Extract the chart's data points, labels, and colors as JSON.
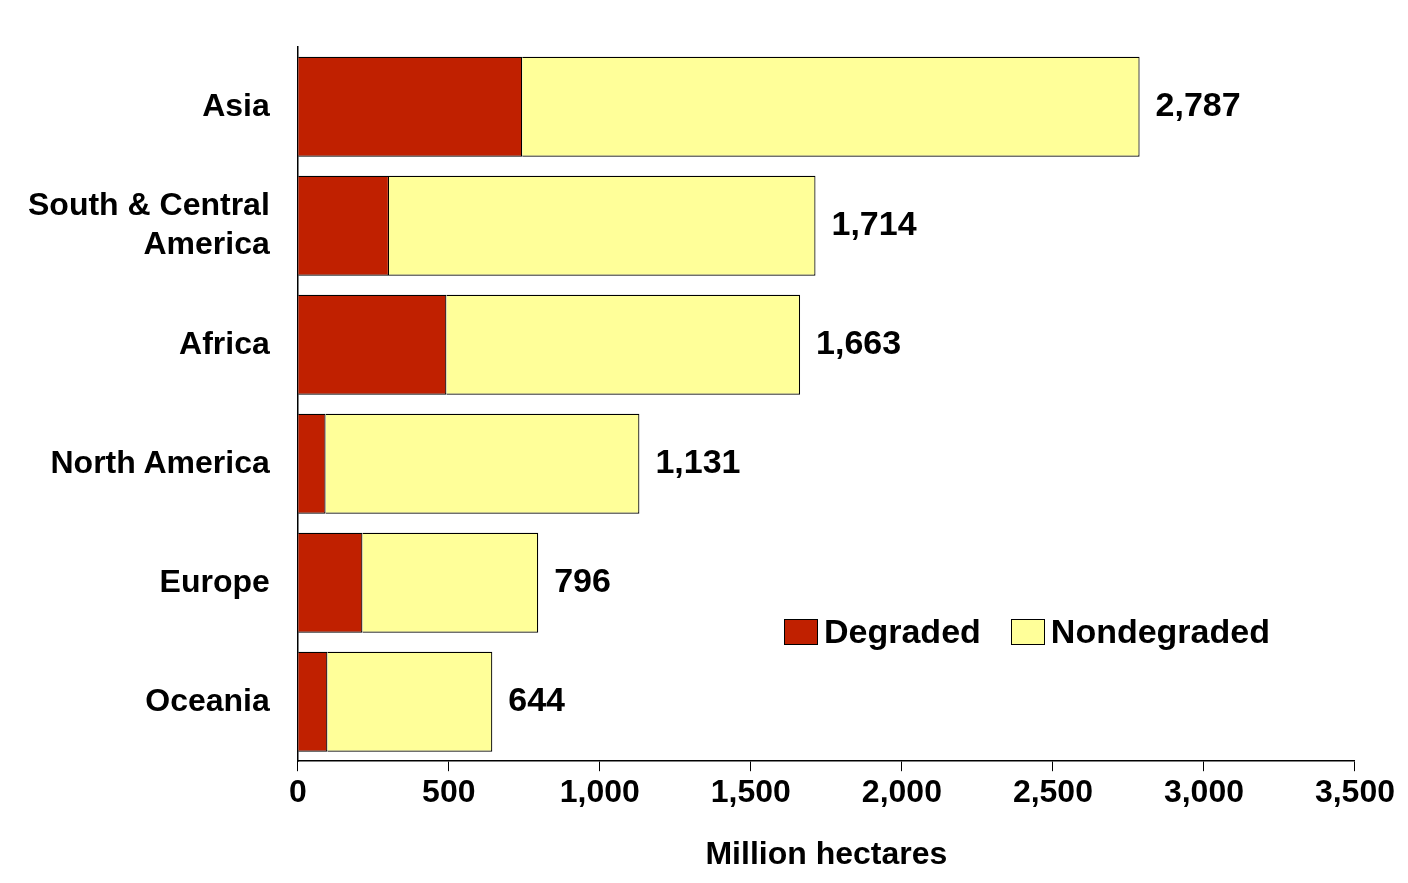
{
  "chart_data": {
    "type": "bar",
    "orientation": "horizontal",
    "stacked": true,
    "xlabel": "Million hectares",
    "categories": [
      "Asia",
      "South & Central America",
      "Africa",
      "North America",
      "Europe",
      "Oceania"
    ],
    "series": [
      {
        "name": "Degraded",
        "color": "#c02000",
        "values": [
          743,
          302,
          492,
          92,
          214,
          98
        ]
      },
      {
        "name": "Nondegraded",
        "color": "#ffff99",
        "values": [
          2044,
          1412,
          1171,
          1039,
          582,
          546
        ]
      }
    ],
    "totals": [
      "2,787",
      "1,714",
      "1,663",
      "1,131",
      "796",
      "644"
    ],
    "xlim": [
      0,
      3500
    ],
    "xticks": [
      0,
      {
        "value": 500,
        "label": "500"
      },
      {
        "value": 1000,
        "label": "1,000"
      },
      {
        "value": 1500,
        "label": "1,500"
      },
      {
        "value": 2000,
        "label": "2,000"
      },
      {
        "value": 2500,
        "label": "2,500"
      },
      {
        "value": 3000,
        "label": "3,000"
      },
      {
        "value": 3500,
        "label": "3,500"
      }
    ],
    "grid": false,
    "legend": "bottom right"
  }
}
